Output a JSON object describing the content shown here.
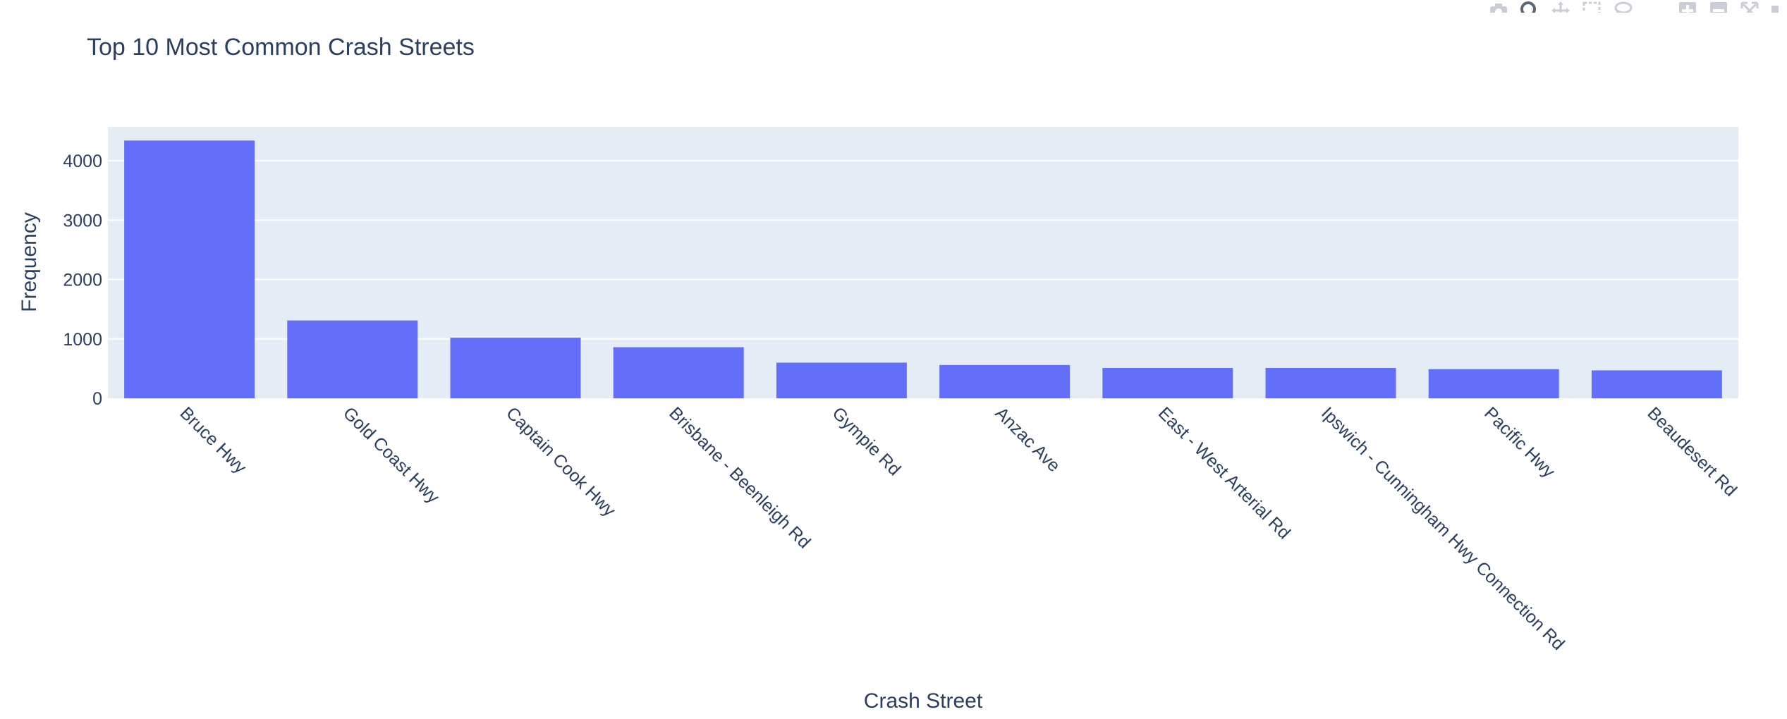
{
  "chart_data": {
    "type": "bar",
    "title": "Top 10 Most Common Crash Streets",
    "xlabel": "Crash Street",
    "ylabel": "Frequency",
    "categories": [
      "Bruce Hwy",
      "Gold Coast Hwy",
      "Captain Cook Hwy",
      "Brisbane - Beenleigh Rd",
      "Gympie Rd",
      "Anzac Ave",
      "East - West Arterial Rd",
      "Ipswich - Cunningham Hwy Connection Rd",
      "Pacific Hwy",
      "Beaudesert Rd"
    ],
    "values": [
      4340,
      1310,
      1020,
      860,
      600,
      560,
      510,
      510,
      490,
      470
    ],
    "ylim": [
      0,
      4570
    ],
    "yticks": [
      0,
      1000,
      2000,
      3000,
      4000
    ],
    "grid": true,
    "colors": {
      "bar": "#636efa",
      "plot_bg": "#e5ecf6",
      "grid": "#ffffff",
      "text": "#2a3f5f"
    }
  },
  "modebar": {
    "icons": [
      "camera-icon",
      "zoom-icon",
      "pan-icon",
      "box-select-icon",
      "lasso-icon",
      "zoom-in-icon",
      "zoom-out-icon",
      "autoscale-icon",
      "reset-axes-icon"
    ]
  }
}
